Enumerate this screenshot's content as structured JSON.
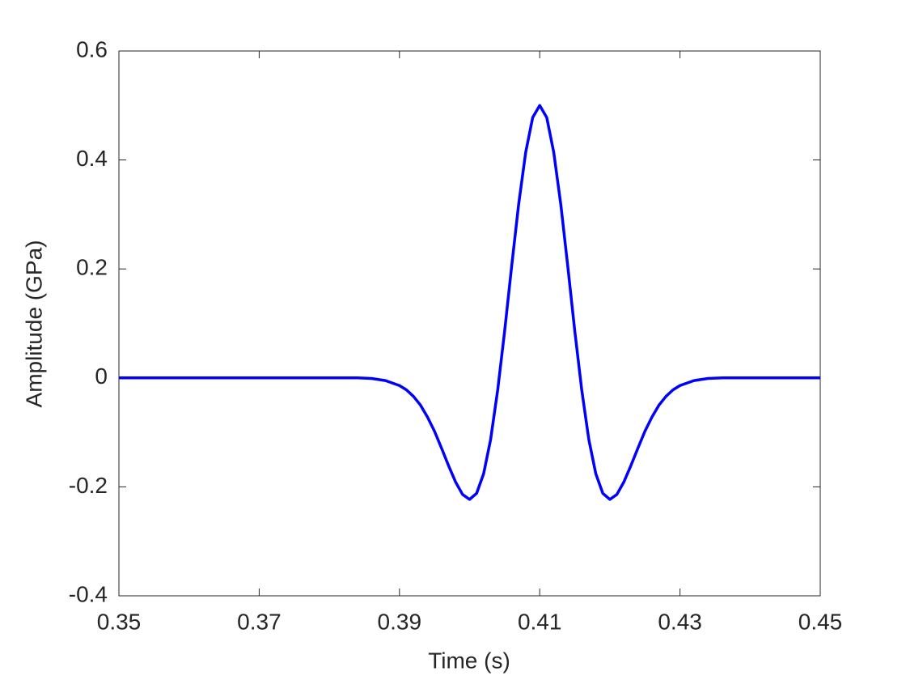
{
  "chart_data": {
    "type": "line",
    "x_label": "Time (s)",
    "y_label": "Amplitude (GPa)",
    "x": [
      0.35,
      0.36,
      0.37,
      0.38,
      0.382,
      0.384,
      0.386,
      0.388,
      0.39,
      0.391,
      0.392,
      0.393,
      0.394,
      0.395,
      0.396,
      0.397,
      0.398,
      0.399,
      0.4,
      0.401,
      0.402,
      0.403,
      0.404,
      0.405,
      0.406,
      0.407,
      0.408,
      0.409,
      0.41,
      0.411,
      0.412,
      0.413,
      0.414,
      0.415,
      0.416,
      0.417,
      0.418,
      0.419,
      0.42,
      0.421,
      0.422,
      0.423,
      0.424,
      0.425,
      0.426,
      0.427,
      0.428,
      0.429,
      0.43,
      0.432,
      0.434,
      0.436,
      0.438,
      0.44,
      0.45
    ],
    "series": [
      {
        "name": "Amplitude",
        "color": "#0000ff",
        "values": [
          0,
          0,
          0,
          0,
          0,
          0,
          -0.001,
          -0.005,
          -0.014,
          -0.022,
          -0.034,
          -0.05,
          -0.072,
          -0.098,
          -0.129,
          -0.161,
          -0.191,
          -0.214,
          -0.223,
          -0.212,
          -0.176,
          -0.113,
          -0.023,
          0.086,
          0.205,
          0.319,
          0.414,
          0.478,
          0.5,
          0.478,
          0.414,
          0.319,
          0.205,
          0.086,
          -0.023,
          -0.113,
          -0.176,
          -0.212,
          -0.223,
          -0.214,
          -0.191,
          -0.161,
          -0.129,
          -0.098,
          -0.072,
          -0.05,
          -0.034,
          -0.022,
          -0.014,
          -0.005,
          -0.001,
          0,
          0,
          0,
          0
        ]
      }
    ],
    "xlim": [
      0.35,
      0.45
    ],
    "xticks": [
      0.35,
      0.37,
      0.39,
      0.41,
      0.43,
      0.45
    ],
    "ylim": [
      -0.4,
      0.6
    ],
    "yticks": [
      -0.4,
      -0.2,
      0,
      0.2,
      0.4,
      0.6
    ],
    "grid": false
  }
}
